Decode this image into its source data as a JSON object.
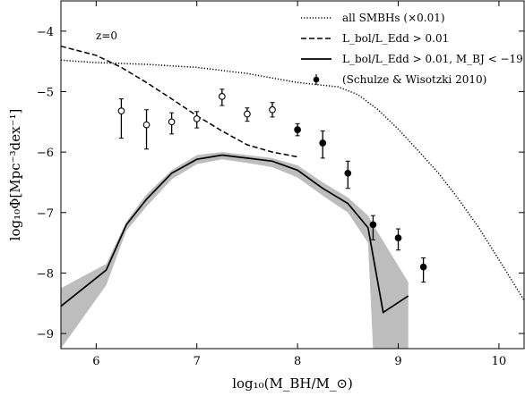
{
  "chart_data": {
    "type": "line",
    "xlabel": "log₁₀(M_BH/M_⊙)",
    "ylabel": "log₁₀Φ[Mpc⁻³dex⁻¹]",
    "xlim": [
      5.65,
      10.25
    ],
    "ylim": [
      -9.25,
      -3.5
    ],
    "x_ticks": [
      6,
      7,
      8,
      9,
      10
    ],
    "y_ticks": [
      -9,
      -8,
      -7,
      -6,
      -5,
      -4
    ],
    "grid": false,
    "legend_position": "top-right",
    "annotation": "z=0",
    "series": [
      {
        "name": "all SMBHs (×0.01)",
        "style": "dotted",
        "x": [
          5.65,
          6.0,
          6.5,
          7.0,
          7.5,
          8.0,
          8.4,
          8.6,
          8.8,
          9.0,
          9.2,
          9.4,
          9.6,
          9.8,
          10.0,
          10.25
        ],
        "y": [
          -4.48,
          -4.52,
          -4.55,
          -4.6,
          -4.7,
          -4.85,
          -4.92,
          -5.05,
          -5.3,
          -5.62,
          -5.98,
          -6.35,
          -6.78,
          -7.25,
          -7.78,
          -8.45
        ]
      },
      {
        "name": "L_bol/L_Edd > 0.01",
        "style": "dashed",
        "x": [
          5.65,
          6.0,
          6.25,
          6.5,
          6.75,
          7.0,
          7.25,
          7.5,
          7.75,
          8.0
        ],
        "y": [
          -4.25,
          -4.4,
          -4.6,
          -4.85,
          -5.12,
          -5.4,
          -5.65,
          -5.88,
          -6.0,
          -6.08
        ]
      },
      {
        "name": "L_bol/L_Edd > 0.01, M_BJ < −19",
        "style": "solid",
        "x": [
          5.65,
          6.1,
          6.3,
          6.5,
          6.75,
          7.0,
          7.25,
          7.5,
          7.75,
          8.0,
          8.25,
          8.5,
          8.7,
          8.85,
          9.1
        ],
        "y": [
          -8.55,
          -7.95,
          -7.2,
          -6.78,
          -6.35,
          -6.12,
          -6.05,
          -6.1,
          -6.15,
          -6.3,
          -6.6,
          -6.85,
          -7.25,
          -8.65,
          -8.38
        ]
      },
      {
        "name": "(Schulze & Wisotzki 2010)",
        "style": "markers",
        "x": [
          6.25,
          6.5,
          6.75,
          7.0,
          7.25,
          7.5,
          7.75,
          8.0,
          8.25,
          8.5,
          8.75,
          9.0,
          9.25
        ],
        "y": [
          -5.32,
          -5.55,
          -5.5,
          -5.45,
          -5.08,
          -5.37,
          -5.3,
          -5.63,
          -5.85,
          -6.35,
          -7.2,
          -7.42,
          -7.9
        ],
        "err_low": [
          0.45,
          0.4,
          0.2,
          0.15,
          0.15,
          0.12,
          0.12,
          0.1,
          0.25,
          0.25,
          0.25,
          0.2,
          0.25
        ],
        "err_high": [
          0.2,
          0.25,
          0.15,
          0.12,
          0.12,
          0.1,
          0.12,
          0.1,
          0.2,
          0.2,
          0.15,
          0.15,
          0.15
        ],
        "filled": [
          false,
          false,
          false,
          false,
          false,
          false,
          false,
          true,
          true,
          true,
          true,
          true,
          true
        ]
      }
    ],
    "shaded_band": {
      "x": [
        5.65,
        6.1,
        6.3,
        6.5,
        6.75,
        7.0,
        7.25,
        7.5,
        7.75,
        8.0,
        8.25,
        8.5,
        8.7,
        8.75,
        9.1
      ],
      "upper": [
        -8.25,
        -7.85,
        -7.15,
        -6.7,
        -6.3,
        -6.05,
        -6.0,
        -6.05,
        -6.1,
        -6.22,
        -6.5,
        -6.75,
        -7.05,
        -7.2,
        -8.15
      ],
      "lower": [
        -9.25,
        -8.2,
        -7.3,
        -6.9,
        -6.45,
        -6.2,
        -6.12,
        -6.18,
        -6.25,
        -6.42,
        -6.72,
        -7.0,
        -7.5,
        -9.25,
        -9.25
      ]
    }
  }
}
